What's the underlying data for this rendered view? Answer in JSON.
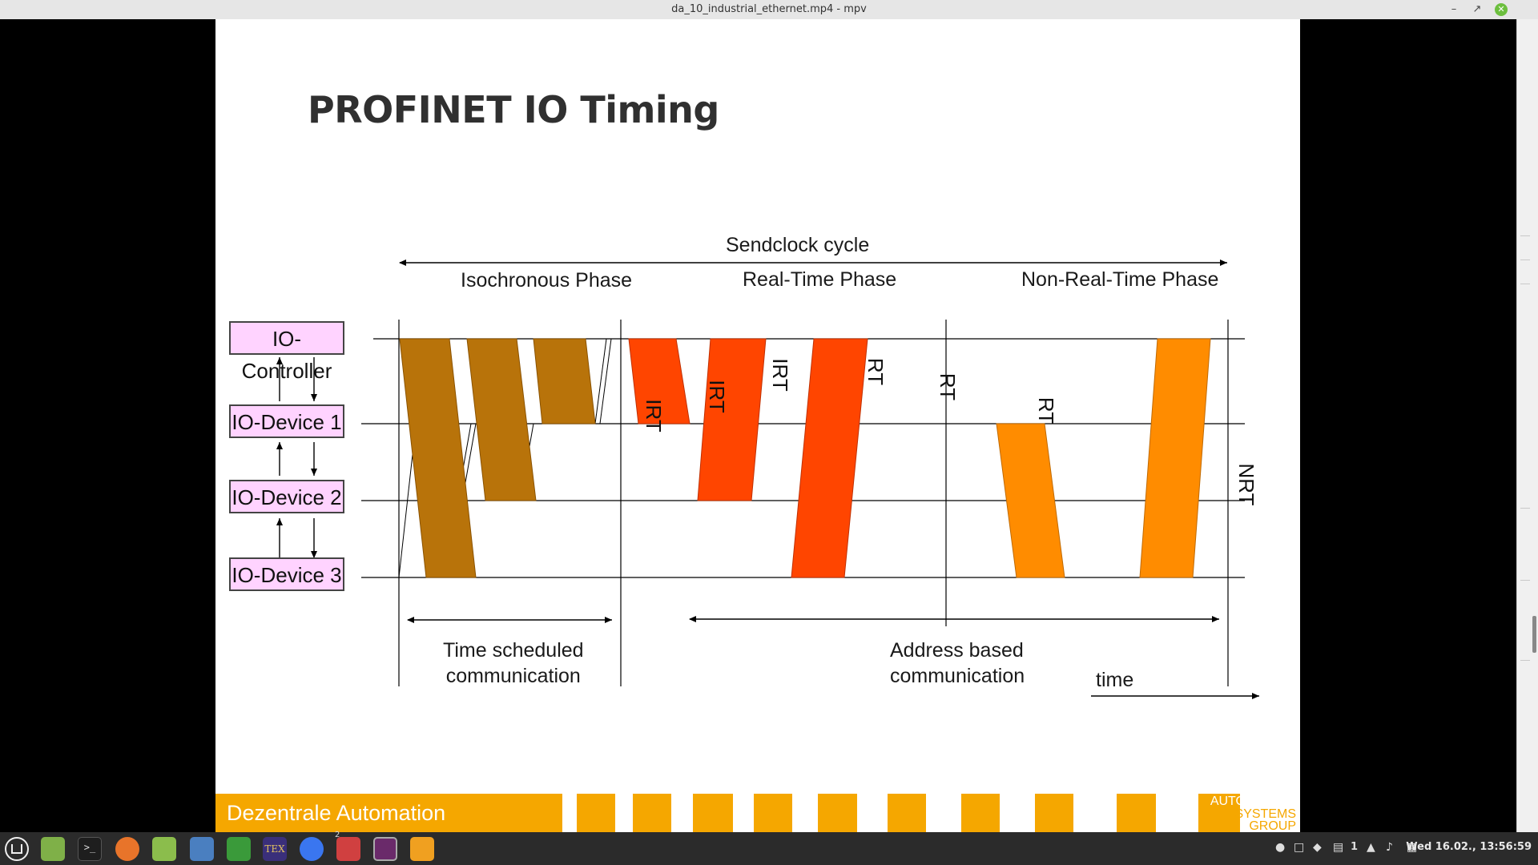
{
  "window": {
    "title": "da_10_industrial_ethernet.mp4 - mpv"
  },
  "slide": {
    "title": "PROFINET IO Timing",
    "sendclock": "Sendclock cycle",
    "phases": {
      "iso": "Isochronous Phase",
      "rt": "Real-Time Phase",
      "nrt": "Non-Real-Time Phase"
    },
    "nodes": {
      "controller": "IO-Controller",
      "dev1": "IO-Device 1",
      "dev2": "IO-Device 2",
      "dev3": "IO-Device 3"
    },
    "frames": {
      "irt": "IRT",
      "rt": "RT",
      "nrt": "NRT"
    },
    "bottom": {
      "time_sched_1": "Time scheduled",
      "time_sched_2": "communication",
      "addr_1": "Address based",
      "addr_2": "communication",
      "time": "time"
    },
    "footer": "Dezentrale Automation",
    "logo": {
      "line1": "AUTOMATION",
      "line2": "SYSTEMS",
      "line3": "GROUP"
    },
    "colors": {
      "irt": "#b8730a",
      "rt": "#ff4500",
      "nrt": "#ff8c00",
      "node": "#ffd3ff",
      "footer": "#f5a700"
    }
  },
  "taskbar": {
    "clock": "Wed 16.02., 13:56:59",
    "workspace": "1",
    "badge": "2"
  }
}
